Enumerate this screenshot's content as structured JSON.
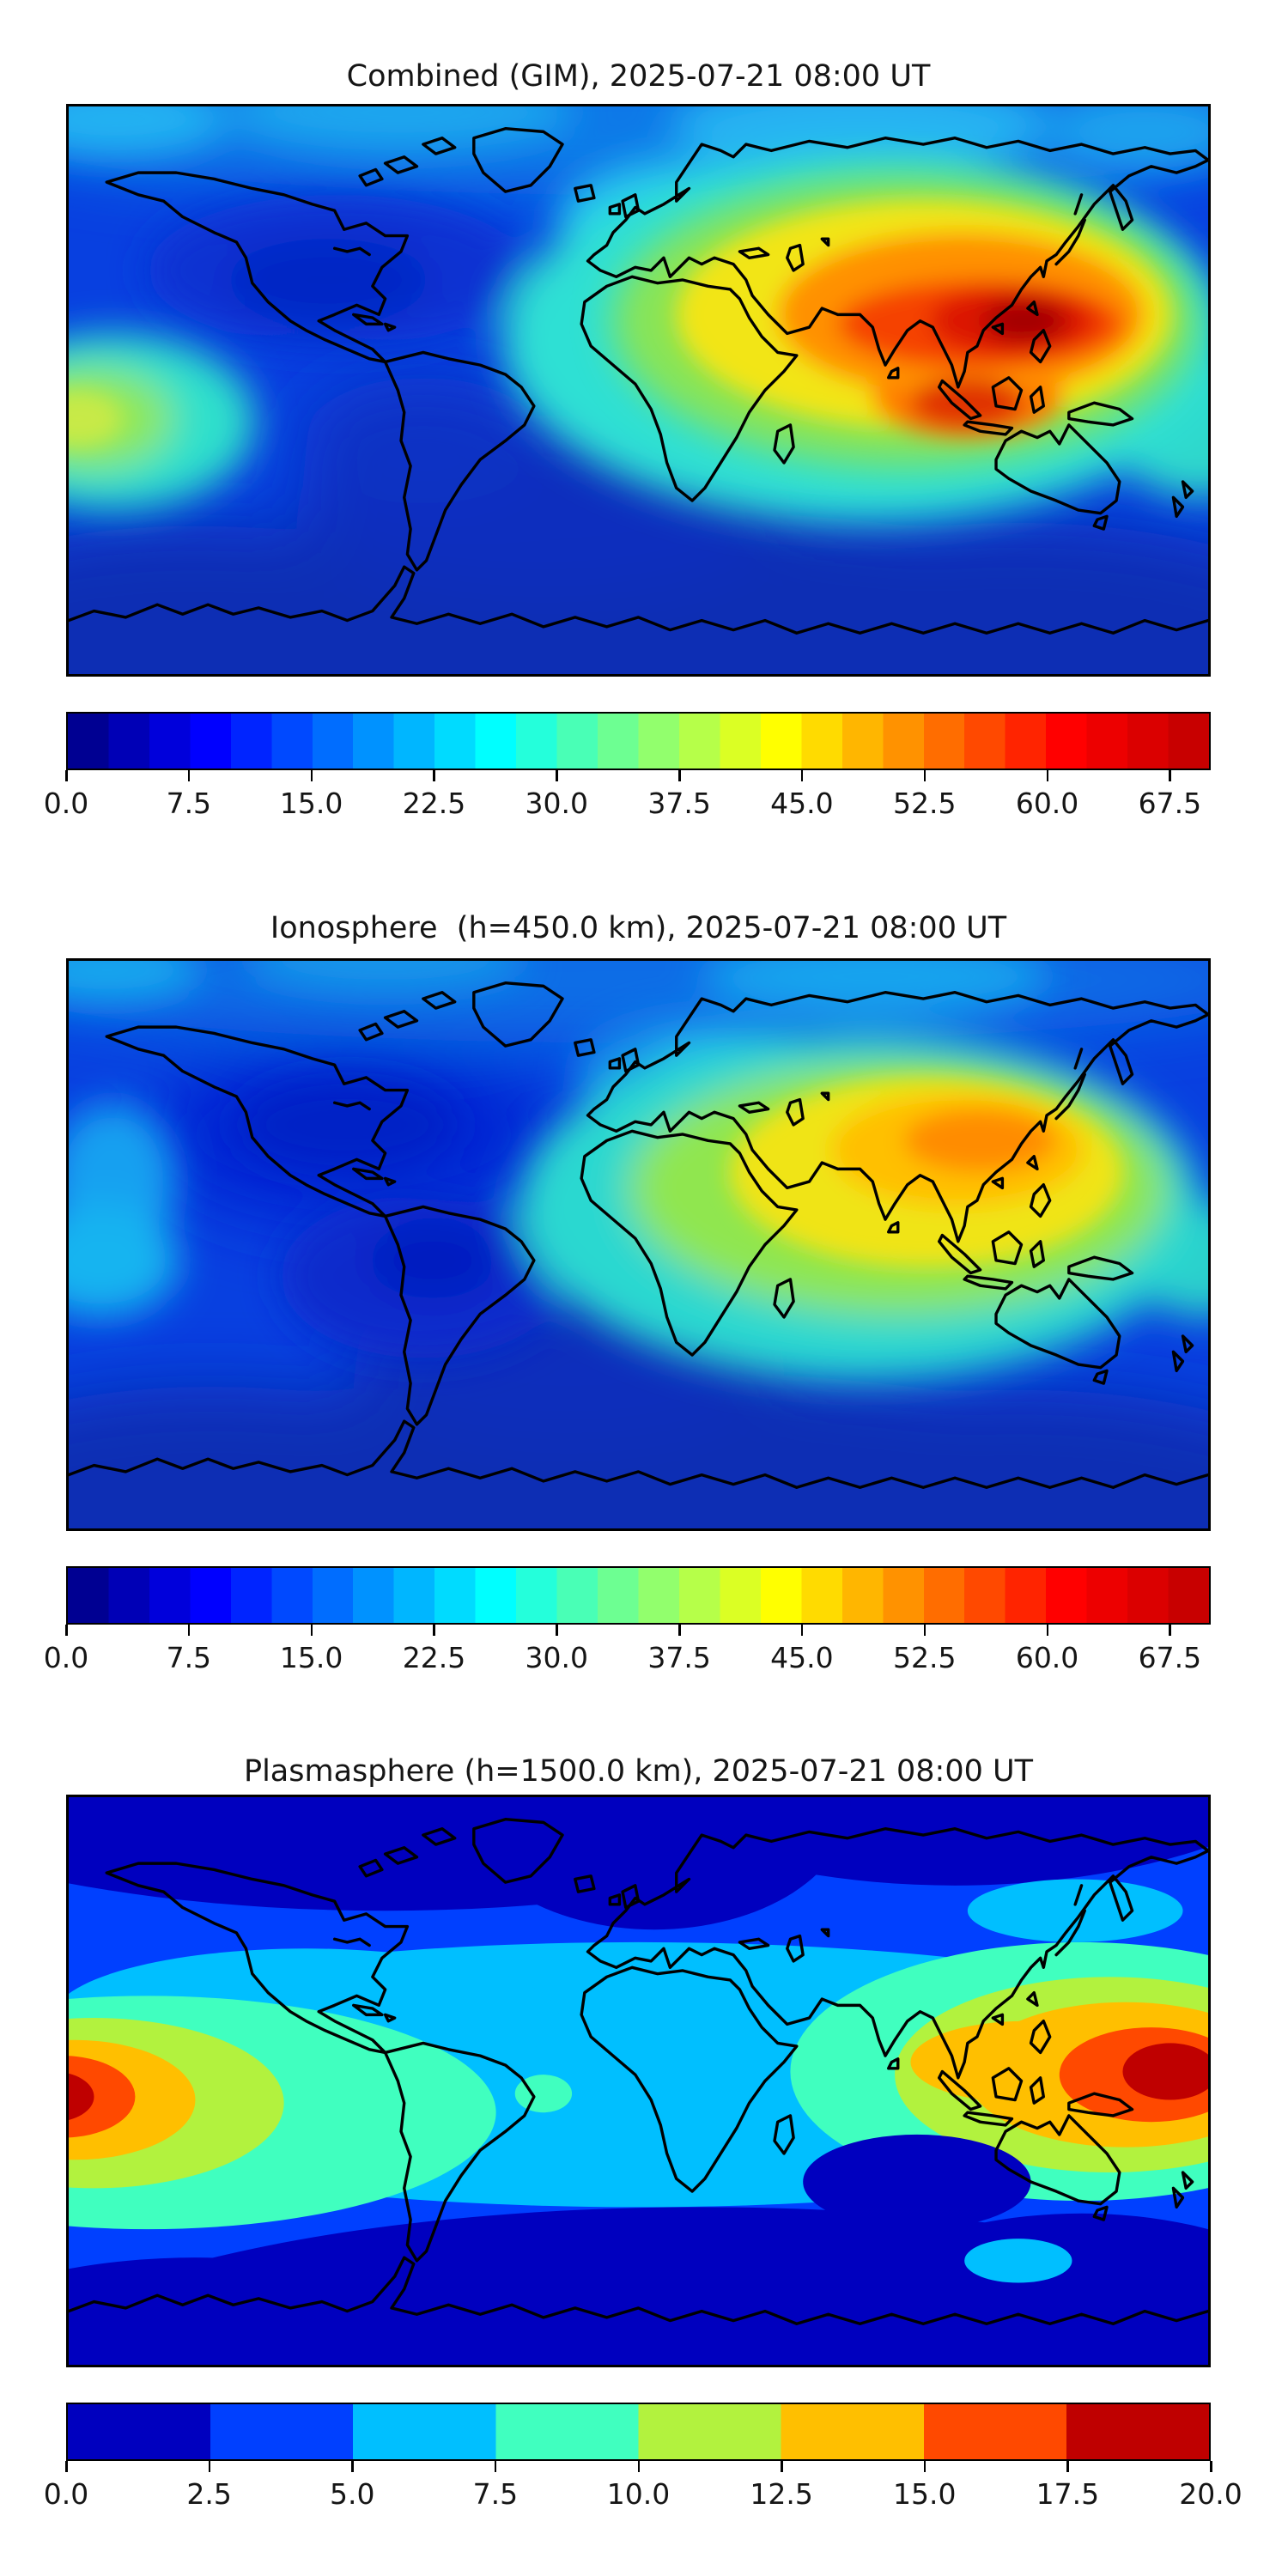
{
  "figures": [
    {
      "title": "Combined (GIM), 2025-07-21 08:00 UT",
      "colorbar": {
        "vmin": 0,
        "vmax": 70,
        "ticks": [
          0.0,
          7.5,
          15.0,
          22.5,
          30.0,
          37.5,
          45.0,
          52.5,
          60.0,
          67.5
        ],
        "tick_labels": [
          "0.0",
          "7.5",
          "15.0",
          "22.5",
          "30.0",
          "37.5",
          "45.0",
          "52.5",
          "60.0",
          "67.5"
        ],
        "segments": [
          "#000092",
          "#0000b6",
          "#0000db",
          "#0000ff",
          "#0024ff",
          "#0049ff",
          "#006dff",
          "#0092ff",
          "#00b6ff",
          "#00dbff",
          "#00ffff",
          "#24ffdb",
          "#49ffb6",
          "#6dff92",
          "#92ff6d",
          "#b6ff49",
          "#dbff24",
          "#ffff00",
          "#ffdb00",
          "#ffb600",
          "#ff9200",
          "#ff6d00",
          "#ff4900",
          "#ff2400",
          "#ff0000",
          "#ed0000",
          "#db0000",
          "#c80000"
        ]
      }
    },
    {
      "title": "Ionosphere  (h=450.0 km), 2025-07-21 08:00 UT",
      "colorbar": {
        "vmin": 0,
        "vmax": 70,
        "ticks": [
          0.0,
          7.5,
          15.0,
          22.5,
          30.0,
          37.5,
          45.0,
          52.5,
          60.0,
          67.5
        ],
        "tick_labels": [
          "0.0",
          "7.5",
          "15.0",
          "22.5",
          "30.0",
          "37.5",
          "45.0",
          "52.5",
          "60.0",
          "67.5"
        ],
        "segments": [
          "#000092",
          "#0000b6",
          "#0000db",
          "#0000ff",
          "#0024ff",
          "#0049ff",
          "#006dff",
          "#0092ff",
          "#00b6ff",
          "#00dbff",
          "#00ffff",
          "#24ffdb",
          "#49ffb6",
          "#6dff92",
          "#92ff6d",
          "#b6ff49",
          "#dbff24",
          "#ffff00",
          "#ffdb00",
          "#ffb600",
          "#ff9200",
          "#ff6d00",
          "#ff4900",
          "#ff2400",
          "#ff0000",
          "#ed0000",
          "#db0000",
          "#c80000"
        ]
      }
    },
    {
      "title": "Plasmasphere (h=1500.0 km), 2025-07-21 08:00 UT",
      "colorbar": {
        "vmin": 0,
        "vmax": 20,
        "ticks": [
          0.0,
          2.5,
          5.0,
          7.5,
          10.0,
          12.5,
          15.0,
          17.5,
          20.0
        ],
        "tick_labels": [
          "0.0",
          "2.5",
          "5.0",
          "7.5",
          "10.0",
          "12.5",
          "15.0",
          "17.5",
          "20.0"
        ],
        "segments": [
          "#0000bf",
          "#0040ff",
          "#00bfff",
          "#40ffbf",
          "#b2f23e",
          "#ffbf00",
          "#ff4900",
          "#bf0000"
        ]
      }
    }
  ],
  "chart_data": [
    {
      "type": "heatmap",
      "title": "Combined (GIM), 2025-07-21 08:00 UT",
      "projection": "equirectangular",
      "lon_range": [
        -180,
        180
      ],
      "lat_range": [
        -90,
        90
      ],
      "colormap": "jet",
      "value_range": [
        0,
        70
      ],
      "contour_step": 2.5,
      "colorbar_ticks": [
        0.0,
        7.5,
        15.0,
        22.5,
        30.0,
        37.5,
        45.0,
        52.5,
        60.0,
        67.5
      ],
      "legend_position": "bottom",
      "grid": false,
      "features": [
        {
          "name": "primary-maximum",
          "lon": 115,
          "lat": 20,
          "value_approx": 70
        },
        {
          "name": "secondary-maximum",
          "lon": 105,
          "lat": -6,
          "value_approx": 60
        },
        {
          "name": "yellow-ridge-africa-arabia",
          "lon": 40,
          "lat": 18,
          "value_approx": 45
        },
        {
          "name": "east-pacific-enhancement",
          "lon": -176,
          "lat": -10,
          "value_approx": 37
        },
        {
          "name": "minimum-north-america-atlantic",
          "lon": -95,
          "lat": 38,
          "value_approx": 7
        },
        {
          "name": "minimum-south-atlantic",
          "lon": -30,
          "lat": -40,
          "value_approx": 5
        }
      ]
    },
    {
      "type": "heatmap",
      "title": "Ionosphere  (h=450.0 km), 2025-07-21 08:00 UT",
      "projection": "equirectangular",
      "lon_range": [
        -180,
        180
      ],
      "lat_range": [
        -90,
        90
      ],
      "colormap": "jet",
      "value_range": [
        0,
        70
      ],
      "contour_step": 2.5,
      "colorbar_ticks": [
        0.0,
        7.5,
        15.0,
        22.5,
        30.0,
        37.5,
        45.0,
        52.5,
        60.0,
        67.5
      ],
      "legend_position": "bottom",
      "grid": false,
      "features": [
        {
          "name": "primary-maximum",
          "lon": 108,
          "lat": 33,
          "value_approx": 53
        },
        {
          "name": "yellow-band-india-indonesia",
          "lon": 95,
          "lat": 5,
          "value_approx": 42
        },
        {
          "name": "cyan-region-africa-indian-ocean",
          "lon": 25,
          "lat": 0,
          "value_approx": 25
        },
        {
          "name": "minimum-americas",
          "lon": -90,
          "lat": 30,
          "value_approx": 5
        },
        {
          "name": "minimum-south-atlantic",
          "lon": -25,
          "lat": -40,
          "value_approx": 4
        }
      ]
    },
    {
      "type": "heatmap",
      "title": "Plasmasphere (h=1500.0 km), 2025-07-21 08:00 UT",
      "projection": "equirectangular",
      "lon_range": [
        -180,
        180
      ],
      "lat_range": [
        -90,
        90
      ],
      "colormap": "jet",
      "value_range": [
        0,
        20
      ],
      "contour_step": 2.5,
      "colorbar_ticks": [
        0.0,
        2.5,
        5.0,
        7.5,
        10.0,
        12.5,
        15.0,
        17.5,
        20.0
      ],
      "legend_position": "bottom",
      "grid": false,
      "features": [
        {
          "name": "west-equatorial-maximum",
          "lon": -178,
          "lat": -5,
          "value_approx": 20
        },
        {
          "name": "east-equatorial-maximum",
          "lon": 167,
          "lat": 3,
          "value_approx": 20
        },
        {
          "name": "equatorial-cyan-band-atlantic-africa",
          "lon": 0,
          "lat": -2,
          "value_approx": 6
        },
        {
          "name": "high-latitude-minimum-north",
          "lon": 0,
          "lat": 70,
          "value_approx": 1
        },
        {
          "name": "south-indian-ocean-minimum",
          "lon": 90,
          "lat": -35,
          "value_approx": 1
        },
        {
          "name": "high-latitude-minimum-south",
          "lon": 0,
          "lat": -75,
          "value_approx": 1
        }
      ]
    }
  ]
}
